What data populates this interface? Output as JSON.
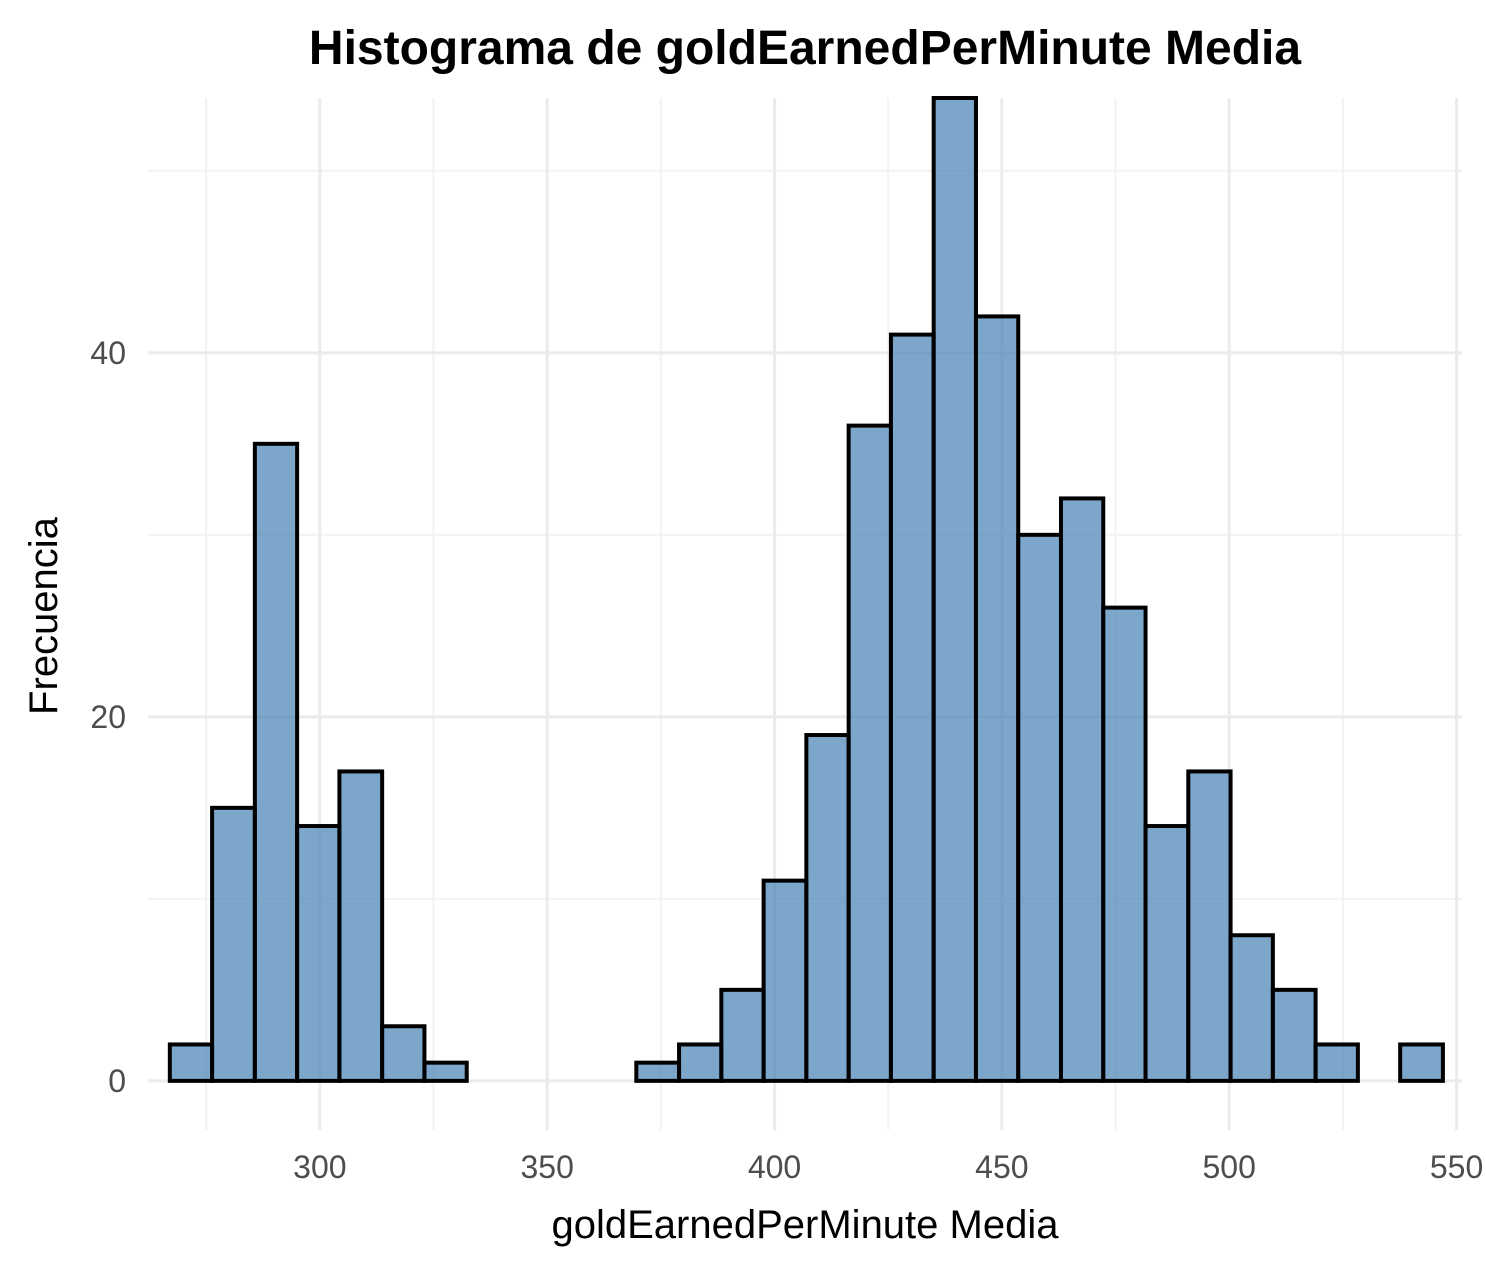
{
  "chart_data": {
    "type": "bar",
    "title": "Histograma de goldEarnedPerMinute Media",
    "xlabel": "goldEarnedPerMinute Media",
    "ylabel": "Frecuencia",
    "xlim": [
      262.2,
      551.2
    ],
    "ylim": [
      -2.7,
      54
    ],
    "x_ticks": [
      300,
      350,
      400,
      450,
      500,
      550
    ],
    "x_tick_labels": [
      "300",
      "350",
      "400",
      "450",
      "500",
      "550"
    ],
    "y_ticks": [
      0,
      20,
      40
    ],
    "y_tick_labels": [
      "0",
      "20",
      "40"
    ],
    "x_minor_ticks": [
      275,
      325,
      375,
      425,
      475,
      525
    ],
    "y_minor_ticks": [
      10,
      30,
      50
    ],
    "grid": true,
    "legend": "none",
    "bar_fill": "#4682b4",
    "bar_fill_opacity": 0.7,
    "bar_stroke": "#000000",
    "bins": [
      {
        "x0": 267.0,
        "x1": 276.3,
        "count": 2
      },
      {
        "x0": 276.3,
        "x1": 285.7,
        "count": 15
      },
      {
        "x0": 285.7,
        "x1": 295.0,
        "count": 35
      },
      {
        "x0": 295.0,
        "x1": 304.3,
        "count": 14
      },
      {
        "x0": 304.3,
        "x1": 313.7,
        "count": 17
      },
      {
        "x0": 313.7,
        "x1": 323.0,
        "count": 3
      },
      {
        "x0": 323.0,
        "x1": 332.3,
        "count": 1
      },
      {
        "x0": 332.3,
        "x1": 341.6,
        "count": 0
      },
      {
        "x0": 341.6,
        "x1": 351.0,
        "count": 0
      },
      {
        "x0": 351.0,
        "x1": 360.3,
        "count": 0
      },
      {
        "x0": 360.3,
        "x1": 369.6,
        "count": 0
      },
      {
        "x0": 369.6,
        "x1": 379.0,
        "count": 1
      },
      {
        "x0": 379.0,
        "x1": 388.3,
        "count": 2
      },
      {
        "x0": 388.3,
        "x1": 397.6,
        "count": 5
      },
      {
        "x0": 397.6,
        "x1": 407.0,
        "count": 11
      },
      {
        "x0": 407.0,
        "x1": 416.3,
        "count": 19
      },
      {
        "x0": 416.3,
        "x1": 425.6,
        "count": 36
      },
      {
        "x0": 425.6,
        "x1": 435.0,
        "count": 41
      },
      {
        "x0": 435.0,
        "x1": 444.3,
        "count": 54
      },
      {
        "x0": 444.3,
        "x1": 453.6,
        "count": 42
      },
      {
        "x0": 453.6,
        "x1": 463.0,
        "count": 30
      },
      {
        "x0": 463.0,
        "x1": 472.3,
        "count": 32
      },
      {
        "x0": 472.3,
        "x1": 481.6,
        "count": 26
      },
      {
        "x0": 481.6,
        "x1": 491.0,
        "count": 14
      },
      {
        "x0": 491.0,
        "x1": 500.3,
        "count": 17
      },
      {
        "x0": 500.3,
        "x1": 509.6,
        "count": 8
      },
      {
        "x0": 509.6,
        "x1": 519.0,
        "count": 5
      },
      {
        "x0": 519.0,
        "x1": 528.3,
        "count": 2
      },
      {
        "x0": 528.3,
        "x1": 537.6,
        "count": 0
      },
      {
        "x0": 537.6,
        "x1": 547.0,
        "count": 2
      }
    ]
  }
}
